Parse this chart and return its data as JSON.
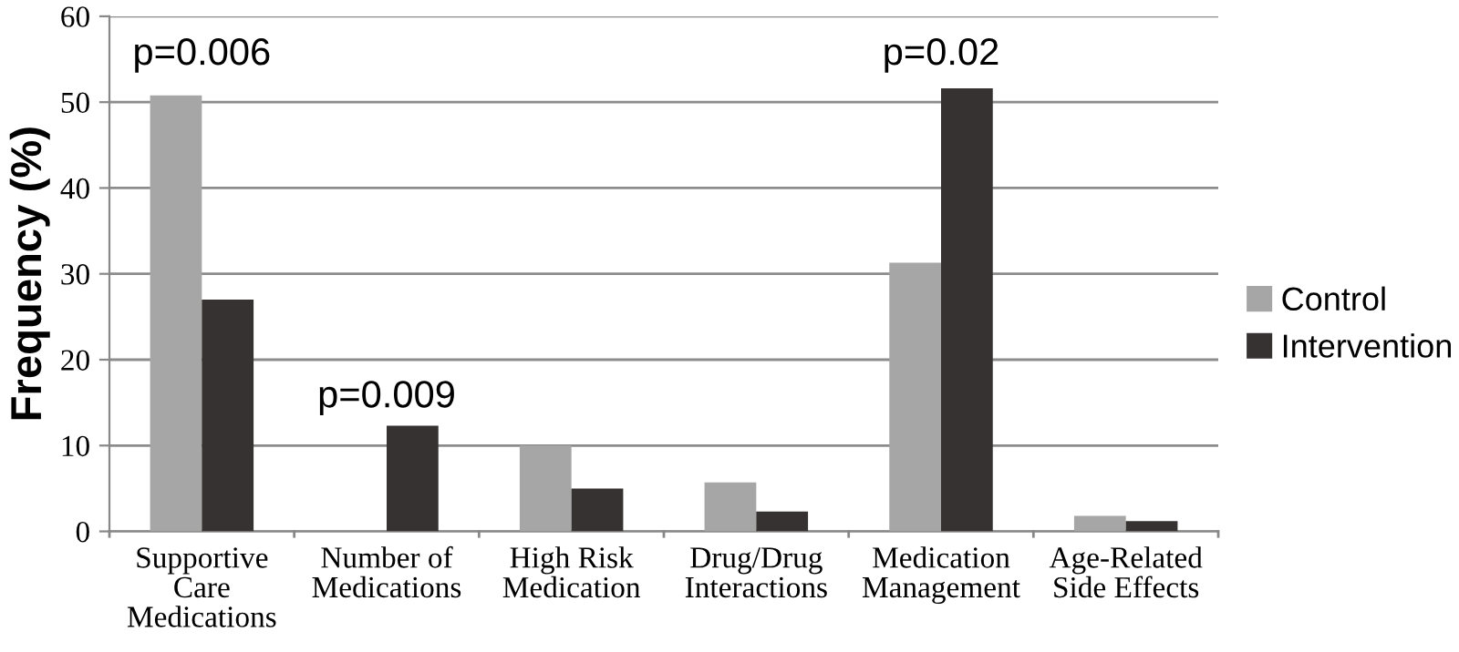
{
  "chart_data": {
    "type": "bar",
    "ylabel": "Frequency (%)",
    "categories": [
      "Supportive\nCare\nMedications",
      "Number of\nMedications",
      "High Risk\nMedication",
      "Drug/Drug\nInteractions",
      "Medication\nManagement",
      "Age-Related\nSide Effects"
    ],
    "series": [
      {
        "name": "Control",
        "color": "#a6a6a6",
        "values": [
          50.8,
          0,
          10,
          5.7,
          31.3,
          1.8
        ]
      },
      {
        "name": "Intervention",
        "color": "#363232",
        "values": [
          27.0,
          12.3,
          5.0,
          2.3,
          51.6,
          1.2
        ]
      }
    ],
    "ylim": [
      0,
      60
    ],
    "yticks": [
      0,
      10,
      20,
      30,
      40,
      50,
      60
    ],
    "grid": "y",
    "legend": "right",
    "annotations": [
      "p=0.006",
      "p=0.009",
      "p=0.02"
    ]
  }
}
